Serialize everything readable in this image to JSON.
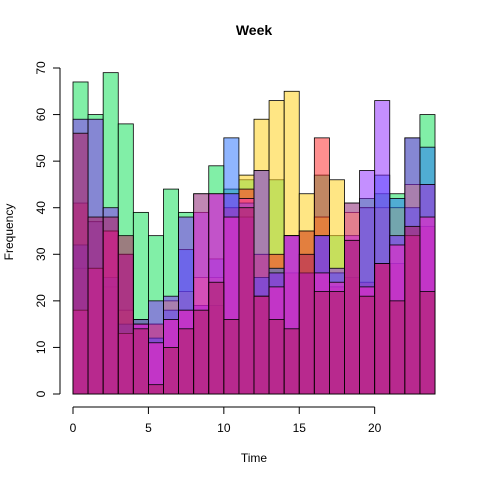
{
  "chart_data": {
    "type": "bar",
    "title": "Week",
    "xlabel": "Time",
    "ylabel": "Frequency",
    "xlim": [
      0,
      24
    ],
    "ylim": [
      0,
      70
    ],
    "x_ticks": [
      0,
      5,
      10,
      15,
      20
    ],
    "y_ticks": [
      0,
      10,
      20,
      30,
      40,
      50,
      60,
      70
    ],
    "bin_width": 1,
    "bin_starts": [
      0,
      1,
      2,
      3,
      4,
      5,
      6,
      7,
      8,
      9,
      10,
      11,
      12,
      13,
      14,
      15,
      16,
      17,
      18,
      19,
      20,
      21,
      22,
      23
    ],
    "series": [
      {
        "color": "#1AE15F",
        "alpha": 0.55,
        "values": [
          67,
          60,
          69,
          58,
          39,
          34,
          44,
          39,
          43,
          49,
          44,
          46,
          48,
          46,
          34,
          35,
          47,
          34,
          41,
          42,
          43,
          43,
          55,
          60
        ]
      },
      {
        "color": "#FFD21F",
        "alpha": 0.55,
        "values": [
          27,
          37,
          23,
          18,
          15,
          15,
          20,
          22,
          25,
          25,
          40,
          47,
          59,
          63,
          65,
          43,
          38,
          46,
          39,
          40,
          40,
          40,
          45,
          45
        ]
      },
      {
        "color": "#FF1F1F",
        "alpha": 0.5,
        "values": [
          41,
          27,
          35,
          30,
          16,
          15,
          16,
          18,
          19,
          19,
          40,
          44,
          30,
          30,
          26,
          35,
          55,
          23,
          25,
          24,
          28,
          28,
          34,
          36
        ]
      },
      {
        "color": "#1F6BFF",
        "alpha": 0.5,
        "values": [
          32,
          37,
          25,
          15,
          16,
          12,
          18,
          31,
          19,
          29,
          55,
          41,
          25,
          27,
          34,
          26,
          34,
          26,
          33,
          40,
          47,
          42,
          40,
          53
        ]
      },
      {
        "color": "#8A1FFF",
        "alpha": 0.5,
        "values": [
          59,
          59,
          40,
          30,
          15,
          20,
          21,
          38,
          39,
          43,
          43,
          38,
          48,
          26,
          34,
          26,
          34,
          27,
          34,
          48,
          63,
          34,
          55,
          45
        ]
      },
      {
        "color": "#FF1FBF",
        "alpha": 0.5,
        "values": [
          18,
          27,
          35,
          13,
          15,
          11,
          16,
          18,
          43,
          43,
          38,
          42,
          21,
          23,
          34,
          26,
          26,
          24,
          41,
          23,
          28,
          32,
          34,
          38
        ]
      },
      {
        "color": "#B01F5F",
        "alpha": 0.55,
        "values": [
          56,
          38,
          38,
          34,
          14,
          2,
          10,
          14,
          18,
          24,
          16,
          40,
          21,
          16,
          14,
          30,
          22,
          22,
          33,
          21,
          28,
          20,
          36,
          22
        ]
      }
    ]
  }
}
